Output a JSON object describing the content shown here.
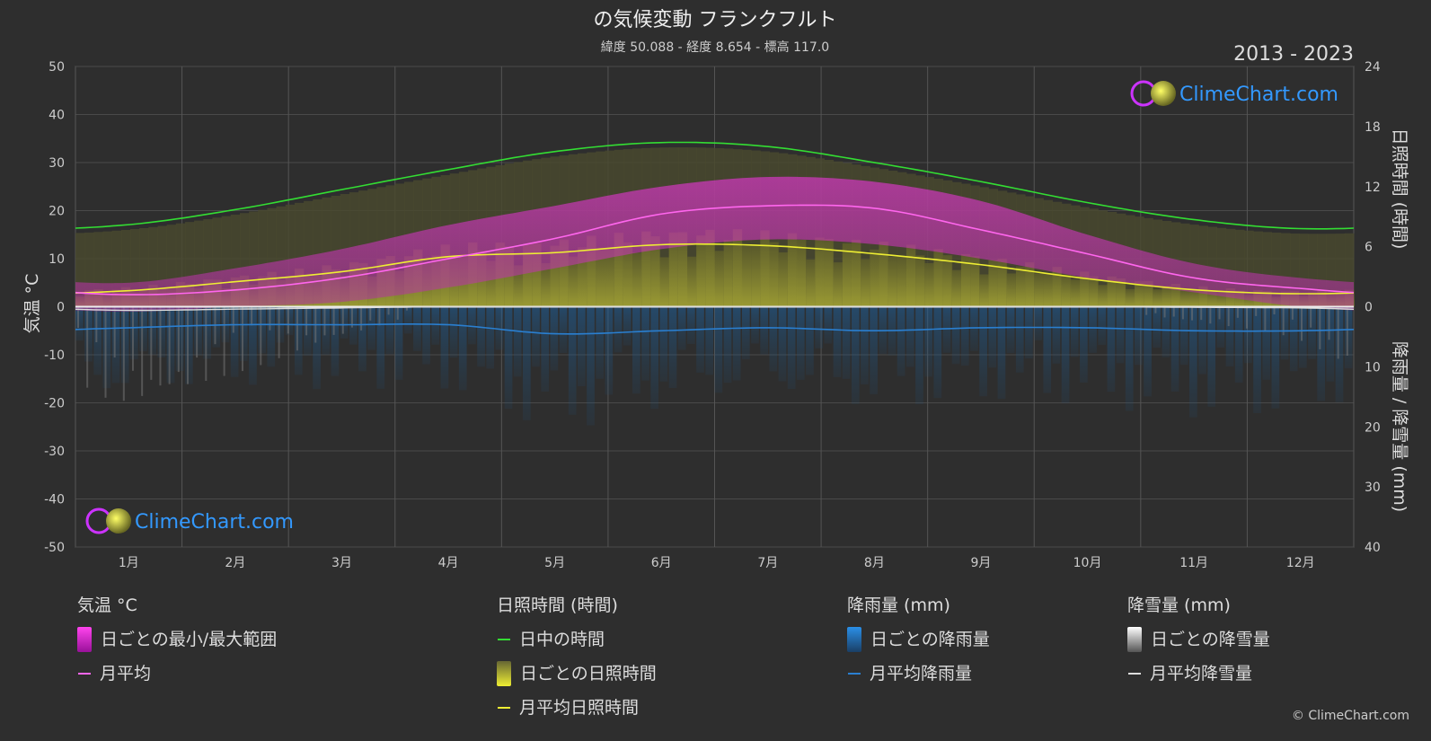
{
  "header": {
    "title": "の気候変動 フランクフルト",
    "subtitle": "緯度 50.088 - 経度 8.654 - 標高 117.0",
    "year_range": "2013 - 2023"
  },
  "logo_text": "ClimeChart.com",
  "copyright": "© ClimeChart.com",
  "colors": {
    "background": "#2e2e2e",
    "daylight": "#33dd33",
    "sunshine_line": "#eeee33",
    "sunshine_fill": "#9a9a30",
    "temp_range": "#cc33aa",
    "temp_avg": "#ff66ee",
    "rain": "#2a7fd0",
    "snow": "#dddddd",
    "brand": "#3399ff"
  },
  "chart_data": {
    "type": "line",
    "x_ticks": [
      "1月",
      "2月",
      "3月",
      "4月",
      "5月",
      "6月",
      "7月",
      "8月",
      "9月",
      "10月",
      "11月",
      "12月"
    ],
    "y_left": {
      "label": "気温 °C",
      "range": [
        -50,
        50
      ],
      "ticks": [
        "50",
        "40",
        "30",
        "20",
        "10",
        "0",
        "-10",
        "-20",
        "-30",
        "-40",
        "-50"
      ]
    },
    "y_right_top": {
      "label": "日照時間 (時間)",
      "range": [
        0,
        24
      ],
      "ticks": [
        "24",
        "18",
        "12",
        "6",
        "0"
      ]
    },
    "y_right_bottom": {
      "label": "降雨量 / 降雪量 (mm)",
      "range": [
        0,
        40
      ],
      "ticks": [
        "0",
        "10",
        "20",
        "30",
        "40"
      ]
    },
    "grid": true,
    "series": [
      {
        "name": "日中の時間",
        "unit": "h",
        "values": [
          8.2,
          9.7,
          11.7,
          13.7,
          15.5,
          16.4,
          16.0,
          14.4,
          12.5,
          10.4,
          8.7,
          7.8
        ]
      },
      {
        "name": "月平均日照時間",
        "unit": "h",
        "values": [
          1.6,
          2.5,
          3.5,
          5.0,
          5.4,
          6.2,
          6.1,
          5.3,
          4.2,
          2.8,
          1.7,
          1.3
        ]
      },
      {
        "name": "月平均",
        "unit": "°C",
        "values": [
          2.5,
          3.5,
          6.0,
          10.0,
          14.2,
          19.3,
          21.0,
          20.5,
          16.0,
          11.0,
          6.0,
          3.8
        ]
      },
      {
        "name": "日ごとの最小/最大範囲",
        "unit": "°C",
        "min": [
          -1,
          0,
          1,
          4,
          8,
          12,
          14,
          13,
          10,
          6,
          3,
          0
        ],
        "max": [
          5,
          8,
          12,
          17,
          21,
          25,
          27,
          26,
          22,
          15,
          9,
          6
        ]
      },
      {
        "name": "月平均降雨量",
        "unit": "mm",
        "values": [
          3.5,
          3.0,
          3.0,
          3.0,
          4.5,
          4.0,
          3.5,
          4.0,
          3.5,
          3.5,
          4.0,
          4.0
        ]
      },
      {
        "name": "月平均降雪量",
        "unit": "mm",
        "values": [
          0.6,
          0.4,
          0.2,
          0.0,
          0.0,
          0.0,
          0.0,
          0.0,
          0.0,
          0.0,
          0.1,
          0.2
        ]
      }
    ]
  },
  "legend": {
    "temperature": {
      "title": "気温 °C",
      "items": [
        "日ごとの最小/最大範囲",
        "月平均"
      ]
    },
    "sunshine": {
      "title": "日照時間 (時間)",
      "items": [
        "日中の時間",
        "日ごとの日照時間",
        "月平均日照時間"
      ]
    },
    "rain": {
      "title": "降雨量 (mm)",
      "items": [
        "日ごとの降雨量",
        "月平均降雨量"
      ]
    },
    "snow": {
      "title": "降雪量 (mm)",
      "items": [
        "日ごとの降雪量",
        "月平均降雪量"
      ]
    }
  }
}
